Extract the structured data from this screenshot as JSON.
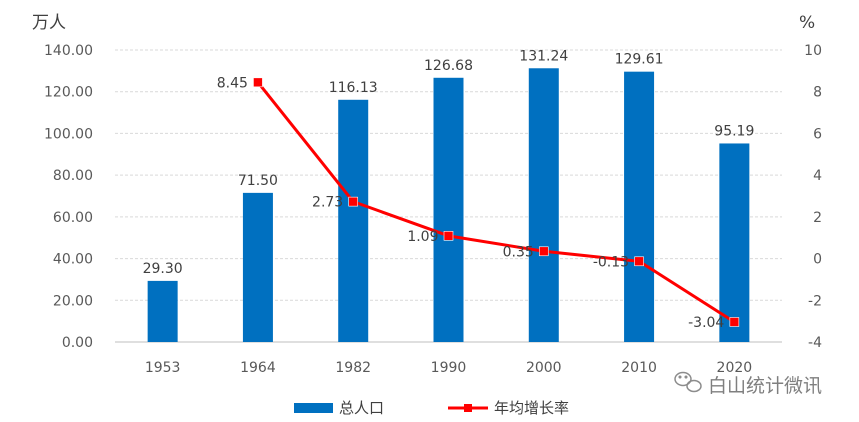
{
  "chart_data": {
    "type": "bar",
    "categories": [
      "1953",
      "1964",
      "1982",
      "1990",
      "2000",
      "2010",
      "2020"
    ],
    "series": [
      {
        "name": "总人口",
        "type": "bar",
        "axis": "left",
        "color": "#0070c0",
        "values": [
          29.3,
          71.5,
          116.13,
          126.68,
          131.24,
          129.61,
          95.19
        ],
        "labels": [
          "29.30",
          "71.50",
          "116.13",
          "126.68",
          "131.24",
          "129.61",
          "95.19"
        ]
      },
      {
        "name": "年均增长率",
        "type": "line",
        "axis": "right",
        "color": "#ff0000",
        "values": [
          null,
          8.45,
          2.73,
          1.09,
          0.35,
          -0.13,
          -3.04
        ],
        "labels": [
          null,
          "8.45",
          "2.73",
          "1.09",
          "0.35",
          "-0.13",
          "-3.04"
        ]
      }
    ],
    "y_left": {
      "unit": "万人",
      "min": 0,
      "max": 140,
      "ticks": [
        "0.00",
        "20.00",
        "40.00",
        "60.00",
        "80.00",
        "100.00",
        "120.00",
        "140.00"
      ]
    },
    "y_right": {
      "unit": "%",
      "min": -4,
      "max": 10,
      "ticks": [
        "-4",
        "-2",
        "0",
        "2",
        "4",
        "6",
        "8",
        "10"
      ]
    },
    "grid": true,
    "legend": "bottom"
  },
  "watermark": {
    "text": "白山统计微讯",
    "icon": "wechat-icon"
  }
}
